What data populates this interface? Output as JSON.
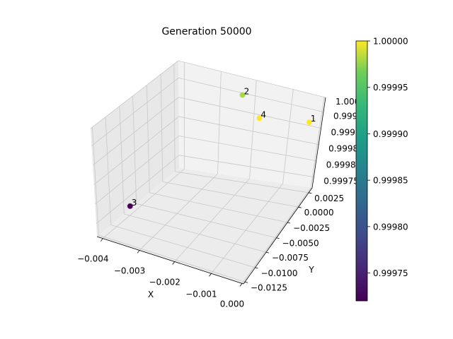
{
  "chart_data": {
    "type": "scatter",
    "title": "Generation 50000",
    "xlabel": "X",
    "ylabel": "Y",
    "zlabel": "",
    "x_ticks": [
      "−0.004",
      "−0.003",
      "−0.002",
      "−0.001",
      "0.000"
    ],
    "y_ticks": [
      "−0.0125",
      "−0.0100",
      "−0.0075",
      "−0.0050",
      "−0.0025",
      "0.0000",
      "0.0025"
    ],
    "z_ticks": [
      "0.99975",
      "0.99980",
      "0.99985",
      "0.99990",
      "0.99995",
      "1.00000"
    ],
    "z_ticks_shown": [
      "0.99975",
      "0.9998",
      "0.9998",
      "0.9999",
      "0.9999",
      "1.0000"
    ],
    "points": [
      {
        "label": "1",
        "x": 0.0,
        "y": 0.001,
        "z": 1.0,
        "c": 1.0
      },
      {
        "label": "2",
        "x": -0.0022,
        "y": 0.002,
        "z": 1.0,
        "c": 0.99998
      },
      {
        "label": "3",
        "x": -0.0042,
        "y": -0.0075,
        "z": 0.99972,
        "c": 0.99972
      },
      {
        "label": "4",
        "x": -0.0013,
        "y": -0.0005,
        "z": 0.99999,
        "c": 1.0
      }
    ],
    "colorbar": {
      "colormap": "viridis",
      "min": 0.99972,
      "max": 1.0,
      "ticks": [
        "0.99975",
        "0.99980",
        "0.99985",
        "0.99990",
        "0.99995",
        "1.00000"
      ]
    },
    "grid": true
  }
}
